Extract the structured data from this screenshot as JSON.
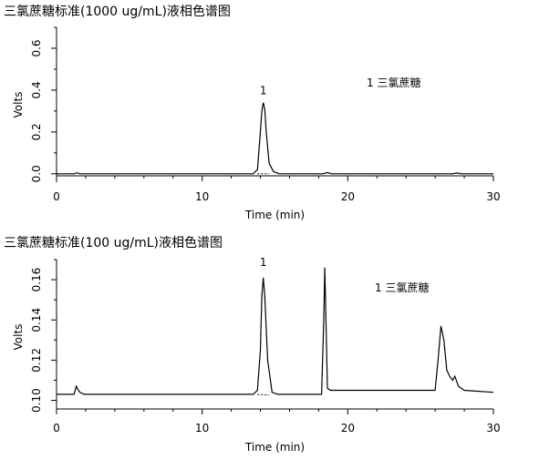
{
  "chart_data": [
    {
      "type": "line",
      "title": "三氯蔗糖标准(1000 ug/mL)液相色谱图",
      "xlabel": "Time (min)",
      "ylabel": "Volts",
      "xlim": [
        0,
        30
      ],
      "ylim": [
        -0.04,
        0.7
      ],
      "x_ticks": [
        0,
        10,
        20,
        30
      ],
      "x_tick_labels": [
        "0",
        "10",
        "20",
        "30"
      ],
      "y_ticks": [
        0.0,
        0.2,
        0.4,
        0.6
      ],
      "y_tick_labels": [
        "0.0",
        "0.2",
        "0.4",
        "0.6"
      ],
      "grid": false,
      "legend": "1 三氯蔗糖",
      "peak_labels": [
        {
          "x": 14.2,
          "y": 0.355,
          "text": "1"
        }
      ],
      "series": [
        {
          "x": [
            0,
            1.2,
            1.4,
            1.6,
            13.5,
            13.8,
            14.0,
            14.1,
            14.2,
            14.3,
            14.4,
            14.6,
            14.9,
            15.3,
            18.3,
            18.6,
            18.9,
            27.2,
            27.5,
            27.8,
            30
          ],
          "y": [
            0.0,
            0.0,
            0.005,
            0.0,
            0.0,
            0.02,
            0.2,
            0.3,
            0.34,
            0.31,
            0.2,
            0.05,
            0.01,
            0.0,
            0.0,
            0.006,
            0.0,
            0.0,
            0.004,
            0.0,
            0.0
          ]
        }
      ],
      "baseline": {
        "x": [
          13.8,
          14.2,
          14.6
        ],
        "y": [
          0.0,
          0.0,
          0.0
        ]
      }
    },
    {
      "type": "line",
      "title": "三氯蔗糖标准(100 ug/mL)液相色谱图",
      "xlabel": "Time (min)",
      "ylabel": "Volts",
      "xlim": [
        0,
        30
      ],
      "ylim": [
        0.093,
        0.17
      ],
      "x_ticks": [
        0,
        10,
        20,
        30
      ],
      "x_tick_labels": [
        "0",
        "10",
        "20",
        "30"
      ],
      "y_ticks": [
        0.1,
        0.12,
        0.14,
        0.16
      ],
      "y_tick_labels": [
        "0.10",
        "0.12",
        "0.14",
        "0.16"
      ],
      "grid": false,
      "legend": "1 三氯蔗糖",
      "peak_labels": [
        {
          "x": 14.2,
          "y": 0.164,
          "text": "1"
        }
      ],
      "series": [
        {
          "x": [
            0,
            1.2,
            1.35,
            1.5,
            1.6,
            1.9,
            13.5,
            13.8,
            14.0,
            14.1,
            14.2,
            14.3,
            14.5,
            14.8,
            15.2,
            18.2,
            18.35,
            18.42,
            18.5,
            18.6,
            18.8,
            19.5,
            26.0,
            26.2,
            26.4,
            26.6,
            26.8,
            27.0,
            27.2,
            27.35,
            27.6,
            28.0,
            30
          ],
          "y": [
            0.103,
            0.103,
            0.107,
            0.105,
            0.104,
            0.103,
            0.103,
            0.105,
            0.125,
            0.152,
            0.161,
            0.152,
            0.12,
            0.104,
            0.103,
            0.103,
            0.14,
            0.166,
            0.14,
            0.106,
            0.105,
            0.105,
            0.105,
            0.12,
            0.137,
            0.13,
            0.115,
            0.112,
            0.11,
            0.112,
            0.107,
            0.105,
            0.104
          ]
        }
      ],
      "baseline": {
        "x": [
          13.8,
          14.2,
          14.6
        ],
        "y": [
          0.103,
          0.1028,
          0.1027
        ]
      }
    }
  ]
}
